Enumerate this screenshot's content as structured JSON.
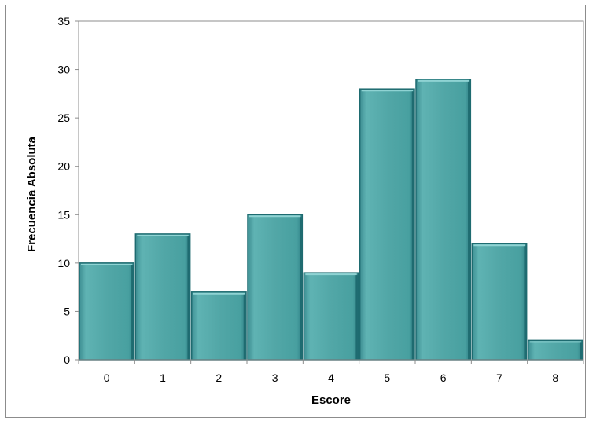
{
  "chart_data": {
    "type": "bar",
    "categories": [
      "0",
      "1",
      "2",
      "3",
      "4",
      "5",
      "6",
      "7",
      "8"
    ],
    "values": [
      10,
      13,
      7,
      15,
      9,
      28,
      29,
      12,
      2
    ],
    "title": "",
    "xlabel": "Escore",
    "ylabel": "Frecuencia Absoluta",
    "ylim": [
      0,
      35
    ],
    "yticks": [
      0,
      5,
      10,
      15,
      20,
      25,
      30,
      35
    ],
    "grid": false,
    "legend": "none",
    "bar_style": "bevel",
    "colors": {
      "bar_fill": "#4fa5a5",
      "bar_highlight": "#8fd3d3",
      "bar_edge": "#1e6b70",
      "axis": "#8c8c8c",
      "plot_border": "#8c8c8c"
    }
  }
}
